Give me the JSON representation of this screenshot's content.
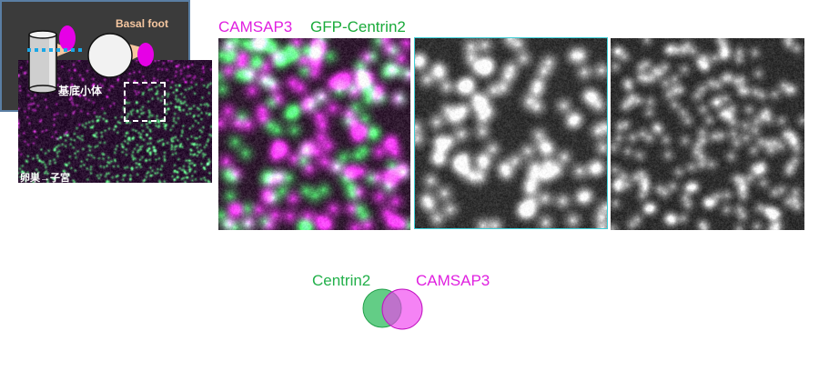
{
  "panels": {
    "overview_caption": "卵巣→子宮",
    "channel_labels": [
      {
        "text": "CAMSAP3",
        "color": "#e020e0"
      },
      {
        "text": "GFP-Centrin2",
        "color": "#1aaa3a"
      }
    ]
  },
  "schematic": {
    "basal_foot_label": "Basal foot",
    "basal_body_label": "基底小体",
    "colors": {
      "background": "#3b3b3b",
      "basal_foot_label": "#f6c7a0",
      "magenta": "#e600e6",
      "dotted_line": "#19a7e6"
    }
  },
  "venn": {
    "left_label": "Centrin2",
    "right_label": "CAMSAP3",
    "left_color": "#22b04a",
    "right_color": "#e020e0"
  }
}
